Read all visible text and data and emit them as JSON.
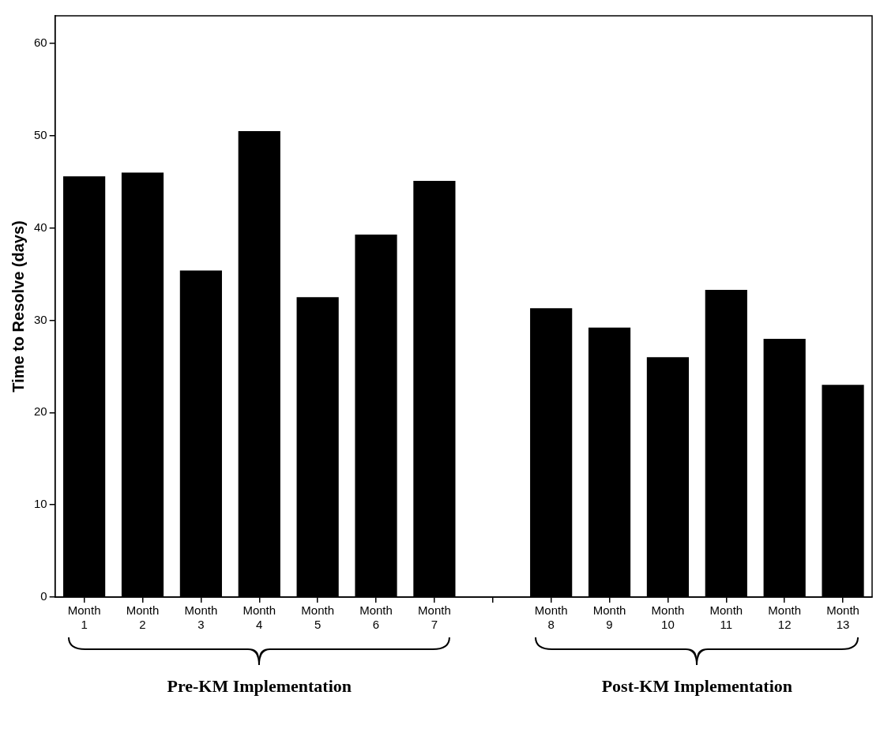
{
  "chart_data": {
    "type": "bar",
    "ylabel": "Time to Resolve (days)",
    "categories": [
      "Month 1",
      "Month 2",
      "Month 3",
      "Month 4",
      "Month 5",
      "Month 6",
      "Month 7",
      null,
      "Month 8",
      "Month 9",
      "Month 10",
      "Month 11",
      "Month 12",
      "Month 13"
    ],
    "values": [
      45.6,
      46.0,
      35.4,
      50.5,
      32.5,
      39.3,
      45.1,
      null,
      31.3,
      29.2,
      26.0,
      33.3,
      28.0,
      23.0
    ],
    "color": "#000000",
    "ylim": [
      0,
      63
    ],
    "yticks": [
      0,
      10,
      20,
      30,
      40,
      50,
      60
    ],
    "grid": false,
    "annotations": [
      "Pre-KM Implementation",
      "Post-KM Implementation"
    ]
  }
}
